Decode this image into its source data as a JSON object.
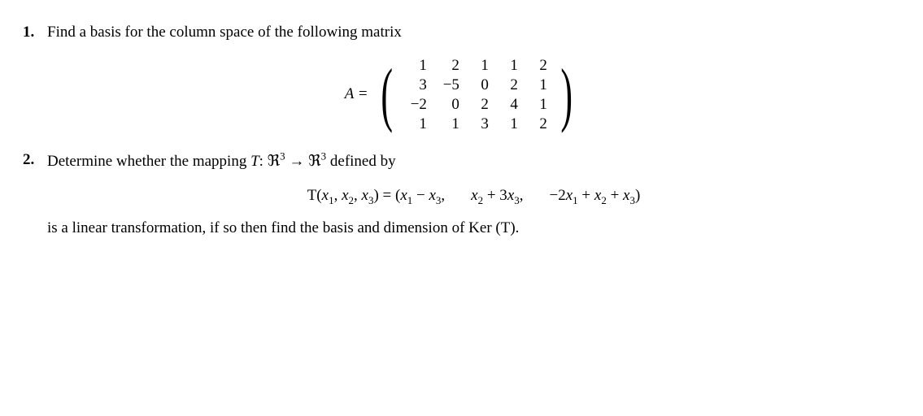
{
  "problem1": {
    "number": "1.",
    "text": "Find a basis for the column space of the following matrix",
    "matrix_label": "A =",
    "matrix_rows": [
      [
        "1",
        "2",
        "1",
        "1",
        "2"
      ],
      [
        "3",
        "−5",
        "0",
        "2",
        "1"
      ],
      [
        "−2",
        "0",
        "2",
        "4",
        "1"
      ],
      [
        "1",
        "1",
        "3",
        "1",
        "2"
      ]
    ]
  },
  "problem2": {
    "number": "2.",
    "intro_part1": "Determine whether the mapping ",
    "map_T": "T",
    "colon": ": ",
    "space_R": "ℜ",
    "exp3_a": "3",
    "arrow": " → ",
    "exp3_b": "3",
    "intro_part2": " defined by",
    "equation": {
      "lhs": "T(x₁, x₂, x₃) = (x₁ − x₃,",
      "mid": "x₂ + 3x₃,",
      "rhs": "−2x₁ + x₂ + x₃)"
    },
    "closing": "is a linear transformation, if so then find the basis and dimension of Ker (T)."
  },
  "style": {
    "font_family": "Times New Roman",
    "text_color": "#000000",
    "background_color": "#ffffff",
    "body_fontsize": 19
  }
}
